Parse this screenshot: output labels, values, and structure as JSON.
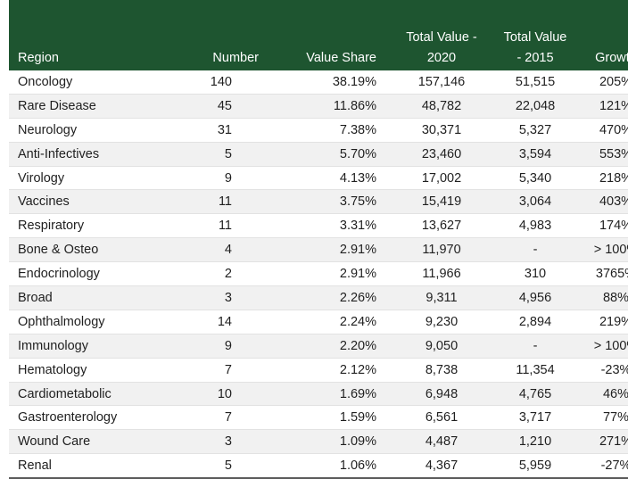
{
  "table": {
    "headers": {
      "region": "Region",
      "number": "Number",
      "value_share": "Value Share",
      "total_2020_line1": "Total Value -",
      "total_2020_line2": "2020",
      "total_2015_line1": "Total Value",
      "total_2015_line2": "- 2015",
      "growth": "Growth"
    },
    "rows": [
      {
        "region": "Oncology",
        "number": "140",
        "value_share": "38.19%",
        "total_2020": "157,146",
        "total_2015": "51,515",
        "growth": "205%"
      },
      {
        "region": "Rare Disease",
        "number": "45",
        "value_share": "11.86%",
        "total_2020": "48,782",
        "total_2015": "22,048",
        "growth": "121%"
      },
      {
        "region": "Neurology",
        "number": "31",
        "value_share": "7.38%",
        "total_2020": "30,371",
        "total_2015": "5,327",
        "growth": "470%"
      },
      {
        "region": "Anti-Infectives",
        "number": "5",
        "value_share": "5.70%",
        "total_2020": "23,460",
        "total_2015": "3,594",
        "growth": "553%"
      },
      {
        "region": "Virology",
        "number": "9",
        "value_share": "4.13%",
        "total_2020": "17,002",
        "total_2015": "5,340",
        "growth": "218%"
      },
      {
        "region": "Vaccines",
        "number": "11",
        "value_share": "3.75%",
        "total_2020": "15,419",
        "total_2015": "3,064",
        "growth": "403%"
      },
      {
        "region": "Respiratory",
        "number": "11",
        "value_share": "3.31%",
        "total_2020": "13,627",
        "total_2015": "4,983",
        "growth": "174%"
      },
      {
        "region": "Bone & Osteo",
        "number": "4",
        "value_share": "2.91%",
        "total_2020": "11,970",
        "total_2015": "-",
        "growth": "> 100%"
      },
      {
        "region": "Endocrinology",
        "number": "2",
        "value_share": "2.91%",
        "total_2020": "11,966",
        "total_2015": "310",
        "growth": "3765%"
      },
      {
        "region": "Broad",
        "number": "3",
        "value_share": "2.26%",
        "total_2020": "9,311",
        "total_2015": "4,956",
        "growth": "88%"
      },
      {
        "region": "Ophthalmology",
        "number": "14",
        "value_share": "2.24%",
        "total_2020": "9,230",
        "total_2015": "2,894",
        "growth": "219%"
      },
      {
        "region": "Immunology",
        "number": "9",
        "value_share": "2.20%",
        "total_2020": "9,050",
        "total_2015": "-",
        "growth": "> 100%"
      },
      {
        "region": "Hematology",
        "number": "7",
        "value_share": "2.12%",
        "total_2020": "8,738",
        "total_2015": "11,354",
        "growth": "-23%"
      },
      {
        "region": "Cardiometabolic",
        "number": "10",
        "value_share": "1.69%",
        "total_2020": "6,948",
        "total_2015": "4,765",
        "growth": "46%"
      },
      {
        "region": "Gastroenterology",
        "number": "7",
        "value_share": "1.59%",
        "total_2020": "6,561",
        "total_2015": "3,717",
        "growth": "77%"
      },
      {
        "region": "Wound Care",
        "number": "3",
        "value_share": "1.09%",
        "total_2020": "4,487",
        "total_2015": "1,210",
        "growth": "271%"
      },
      {
        "region": "Renal",
        "number": "5",
        "value_share": "1.06%",
        "total_2020": "4,367",
        "total_2015": "5,959",
        "growth": "-27%"
      }
    ]
  },
  "colors": {
    "header_bg": "#1e5530",
    "header_text": "#ffffff",
    "stripe_bg": "#f1f1f1"
  }
}
